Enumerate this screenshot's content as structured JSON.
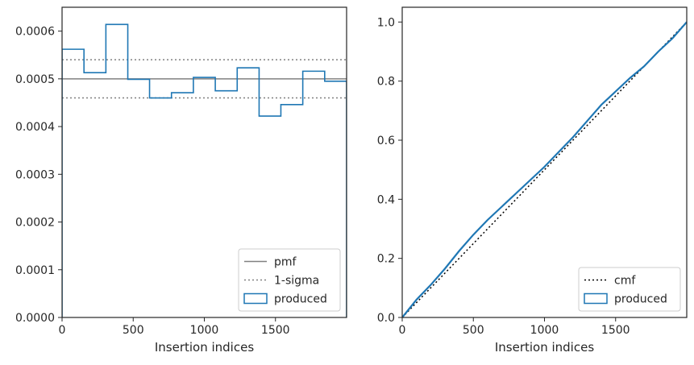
{
  "chart_data": [
    {
      "type": "histogram",
      "xlabel": "Insertion indices",
      "ylabel": "",
      "xlim": [
        0,
        2000
      ],
      "ylim": [
        0,
        0.00065
      ],
      "xticks": [
        0,
        500,
        1000,
        1500
      ],
      "xtick_labels": [
        "0",
        "500",
        "1000",
        "1500"
      ],
      "yticks": [
        0,
        0.0001,
        0.0002,
        0.0003,
        0.0004,
        0.0005,
        0.0006
      ],
      "ytick_labels": [
        "0.0000",
        "0.0001",
        "0.0002",
        "0.0003",
        "0.0004",
        "0.0005",
        "0.0006"
      ],
      "grid": false,
      "legend_position": "lower right",
      "series": [
        {
          "name": "pmf",
          "kind": "hline",
          "value": 0.0005,
          "color": "#808080",
          "dash": "solid"
        },
        {
          "name": "1-sigma",
          "kind": "hlines",
          "values": [
            0.00046,
            0.00054
          ],
          "color": "#808080",
          "dash": "dotted"
        },
        {
          "name": "produced",
          "kind": "step",
          "color": "#1f77b4",
          "bin_edges": [
            0,
            154,
            308,
            462,
            615,
            769,
            923,
            1077,
            1231,
            1385,
            1538,
            1692,
            1846,
            2000
          ],
          "values": [
            0.000562,
            0.000513,
            0.000614,
            0.000499,
            0.00046,
            0.000471,
            0.000503,
            0.000475,
            0.000523,
            0.000422,
            0.000446,
            0.000516,
            0.000495
          ]
        }
      ]
    },
    {
      "type": "line",
      "xlabel": "Insertion indices",
      "ylabel": "",
      "xlim": [
        0,
        2000
      ],
      "ylim": [
        0,
        1.05
      ],
      "xticks": [
        0,
        500,
        1000,
        1500
      ],
      "xtick_labels": [
        "0",
        "500",
        "1000",
        "1500"
      ],
      "yticks": [
        0,
        0.2,
        0.4,
        0.6,
        0.8,
        1.0
      ],
      "ytick_labels": [
        "0.0",
        "0.2",
        "0.4",
        "0.6",
        "0.8",
        "1.0"
      ],
      "grid": false,
      "legend_position": "lower right",
      "series": [
        {
          "name": "cmf",
          "color": "#000000",
          "dash": "dotted",
          "x": [
            0,
            2000
          ],
          "y": [
            0,
            1.0
          ]
        },
        {
          "name": "produced",
          "color": "#1f77b4",
          "dash": "solid",
          "x": [
            0,
            50,
            100,
            200,
            300,
            400,
            500,
            600,
            700,
            800,
            900,
            1000,
            1100,
            1200,
            1300,
            1400,
            1500,
            1600,
            1700,
            1800,
            1900,
            2000
          ],
          "y": [
            0,
            0.03,
            0.06,
            0.11,
            0.165,
            0.225,
            0.28,
            0.33,
            0.375,
            0.42,
            0.465,
            0.51,
            0.56,
            0.61,
            0.665,
            0.72,
            0.765,
            0.81,
            0.85,
            0.9,
            0.945,
            1.0
          ]
        }
      ]
    }
  ]
}
